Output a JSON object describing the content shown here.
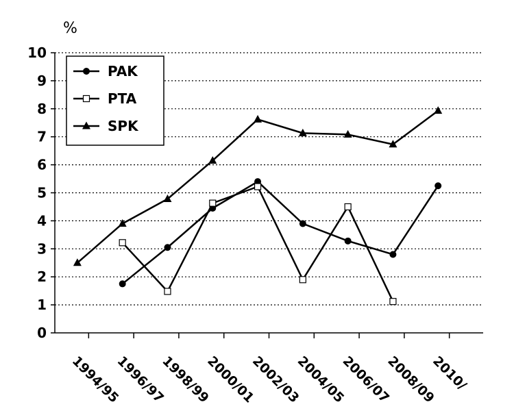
{
  "chart_data": {
    "type": "line",
    "ylabel": "%",
    "ylim": [
      0,
      10
    ],
    "yticks": [
      "0",
      "1",
      "2",
      "3",
      "4",
      "5",
      "6",
      "7",
      "8",
      "9",
      "10"
    ],
    "categories": [
      "1994/95",
      "1996/97",
      "1998/99",
      "2000/01",
      "2002/03",
      "2004/05",
      "2006/07",
      "2008/09",
      "2010/"
    ],
    "grid": true,
    "legend_position": "top-left",
    "series": [
      {
        "name": "PAK",
        "marker": "circle-filled",
        "points": [
          {
            "x": 1995.5,
            "y": 1.75
          },
          {
            "x": 1997.5,
            "y": 3.05
          },
          {
            "x": 1999.5,
            "y": 4.45
          },
          {
            "x": 2001.5,
            "y": 5.4
          },
          {
            "x": 2003.5,
            "y": 3.9
          },
          {
            "x": 2005.5,
            "y": 3.28
          },
          {
            "x": 2007.5,
            "y": 2.8
          },
          {
            "x": 2009.5,
            "y": 5.25
          }
        ]
      },
      {
        "name": "PTA",
        "marker": "square-open",
        "points": [
          {
            "x": 1995.5,
            "y": 3.22
          },
          {
            "x": 1997.5,
            "y": 1.48
          },
          {
            "x": 1999.5,
            "y": 4.63
          },
          {
            "x": 2001.5,
            "y": 5.22
          },
          {
            "x": 2003.5,
            "y": 1.9
          },
          {
            "x": 2005.5,
            "y": 4.5
          },
          {
            "x": 2007.5,
            "y": 1.12
          }
        ]
      },
      {
        "name": "SPK",
        "marker": "triangle-filled",
        "points": [
          {
            "x": 1993.5,
            "y": 2.5
          },
          {
            "x": 1995.5,
            "y": 3.9
          },
          {
            "x": 1997.5,
            "y": 4.78
          },
          {
            "x": 1999.5,
            "y": 6.15
          },
          {
            "x": 2001.5,
            "y": 7.62
          },
          {
            "x": 2003.5,
            "y": 7.13
          },
          {
            "x": 2005.5,
            "y": 7.08
          },
          {
            "x": 2007.5,
            "y": 6.73
          },
          {
            "x": 2009.5,
            "y": 7.93
          }
        ]
      }
    ]
  }
}
